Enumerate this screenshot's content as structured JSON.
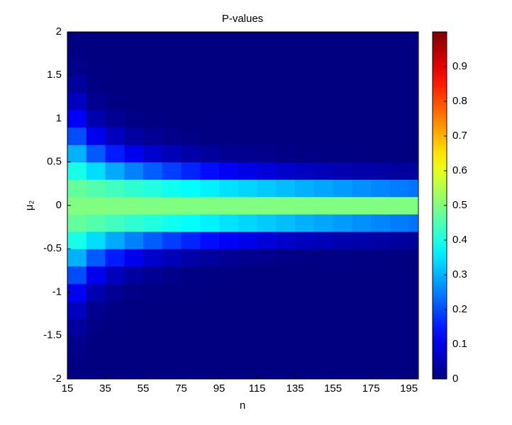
{
  "chart_data": {
    "type": "heatmap",
    "title": "P-values",
    "xlabel": "n",
    "ylabel": "μ₂",
    "colormap": "jet",
    "x": [
      15,
      25,
      35,
      45,
      55,
      65,
      75,
      85,
      95,
      105,
      115,
      125,
      135,
      145,
      155,
      165,
      175,
      185,
      195
    ],
    "y": [
      -2,
      -1.8,
      -1.6,
      -1.4,
      -1.2,
      -1,
      -0.8,
      -0.6,
      -0.4,
      -0.2,
      0,
      0.2,
      0.4,
      0.6,
      0.8,
      1,
      1.2,
      1.4,
      1.6,
      1.8,
      2
    ],
    "z": [
      [
        0.002,
        0,
        0,
        0,
        0,
        0,
        0,
        0,
        0,
        0,
        0,
        0,
        0,
        0,
        0,
        0,
        0,
        0,
        0
      ],
      [
        0.005,
        0,
        0,
        0,
        0,
        0,
        0,
        0,
        0,
        0,
        0,
        0,
        0,
        0,
        0,
        0,
        0,
        0,
        0
      ],
      [
        0.013,
        0.001,
        0,
        0,
        0,
        0,
        0,
        0,
        0,
        0,
        0,
        0,
        0,
        0,
        0,
        0,
        0,
        0,
        0
      ],
      [
        0.03,
        0.005,
        0.001,
        0,
        0,
        0,
        0,
        0,
        0,
        0,
        0,
        0,
        0,
        0,
        0,
        0,
        0,
        0,
        0
      ],
      [
        0.064,
        0.016,
        0.004,
        0.001,
        0,
        0,
        0,
        0,
        0,
        0,
        0,
        0,
        0,
        0,
        0,
        0,
        0,
        0,
        0
      ],
      [
        0.12,
        0.046,
        0.018,
        0.007,
        0.003,
        0.001,
        0,
        0,
        0,
        0,
        0,
        0,
        0,
        0,
        0,
        0,
        0,
        0,
        0
      ],
      [
        0.2,
        0.109,
        0.059,
        0.032,
        0.018,
        0.01,
        0.005,
        0.003,
        0.002,
        0.001,
        0,
        0,
        0,
        0,
        0,
        0,
        0,
        0,
        0
      ],
      [
        0.299,
        0.212,
        0.151,
        0.107,
        0.076,
        0.054,
        0.038,
        0.027,
        0.019,
        0.014,
        0.01,
        0.007,
        0.005,
        0.003,
        0.002,
        0.002,
        0.001,
        0.001,
        0.001
      ],
      [
        0.398,
        0.342,
        0.293,
        0.252,
        0.216,
        0.186,
        0.159,
        0.137,
        0.118,
        0.101,
        0.087,
        0.074,
        0.064,
        0.055,
        0.047,
        0.04,
        0.035,
        0.03,
        0.026
      ],
      [
        0.472,
        0.455,
        0.438,
        0.421,
        0.406,
        0.39,
        0.376,
        0.362,
        0.348,
        0.335,
        0.323,
        0.311,
        0.299,
        0.288,
        0.277,
        0.267,
        0.257,
        0.247,
        0.238
      ],
      [
        0.5,
        0.5,
        0.5,
        0.5,
        0.5,
        0.5,
        0.5,
        0.5,
        0.5,
        0.5,
        0.5,
        0.5,
        0.5,
        0.5,
        0.5,
        0.5,
        0.5,
        0.5,
        0.5
      ],
      [
        0.472,
        0.455,
        0.438,
        0.421,
        0.406,
        0.39,
        0.376,
        0.362,
        0.348,
        0.335,
        0.323,
        0.311,
        0.299,
        0.288,
        0.277,
        0.267,
        0.257,
        0.247,
        0.238
      ],
      [
        0.398,
        0.342,
        0.293,
        0.252,
        0.216,
        0.186,
        0.159,
        0.137,
        0.118,
        0.101,
        0.087,
        0.074,
        0.064,
        0.055,
        0.047,
        0.04,
        0.035,
        0.03,
        0.026
      ],
      [
        0.299,
        0.212,
        0.151,
        0.107,
        0.076,
        0.054,
        0.038,
        0.027,
        0.019,
        0.014,
        0.01,
        0.007,
        0.005,
        0.003,
        0.002,
        0.002,
        0.001,
        0.001,
        0.001
      ],
      [
        0.2,
        0.109,
        0.059,
        0.032,
        0.018,
        0.01,
        0.005,
        0.003,
        0.002,
        0.001,
        0,
        0,
        0,
        0,
        0,
        0,
        0,
        0,
        0
      ],
      [
        0.12,
        0.046,
        0.018,
        0.007,
        0.003,
        0.001,
        0,
        0,
        0,
        0,
        0,
        0,
        0,
        0,
        0,
        0,
        0,
        0,
        0
      ],
      [
        0.064,
        0.016,
        0.004,
        0.001,
        0,
        0,
        0,
        0,
        0,
        0,
        0,
        0,
        0,
        0,
        0,
        0,
        0,
        0,
        0
      ],
      [
        0.03,
        0.005,
        0.001,
        0,
        0,
        0,
        0,
        0,
        0,
        0,
        0,
        0,
        0,
        0,
        0,
        0,
        0,
        0,
        0
      ],
      [
        0.013,
        0.001,
        0,
        0,
        0,
        0,
        0,
        0,
        0,
        0,
        0,
        0,
        0,
        0,
        0,
        0,
        0,
        0,
        0
      ],
      [
        0.005,
        0,
        0,
        0,
        0,
        0,
        0,
        0,
        0,
        0,
        0,
        0,
        0,
        0,
        0,
        0,
        0,
        0,
        0
      ],
      [
        0.002,
        0,
        0,
        0,
        0,
        0,
        0,
        0,
        0,
        0,
        0,
        0,
        0,
        0,
        0,
        0,
        0,
        0,
        0
      ]
    ],
    "xlim": [
      15,
      200
    ],
    "ylim": [
      -2,
      2
    ],
    "xticks": [
      15,
      35,
      55,
      75,
      95,
      115,
      135,
      155,
      175,
      195
    ],
    "yticks": [
      -2,
      -1.5,
      -1,
      -0.5,
      0,
      0.5,
      1,
      1.5,
      2
    ],
    "clim": [
      0,
      1
    ],
    "cticks": [
      0,
      0.1,
      0.2,
      0.3,
      0.4,
      0.5,
      0.6,
      0.7,
      0.8,
      0.9
    ]
  }
}
